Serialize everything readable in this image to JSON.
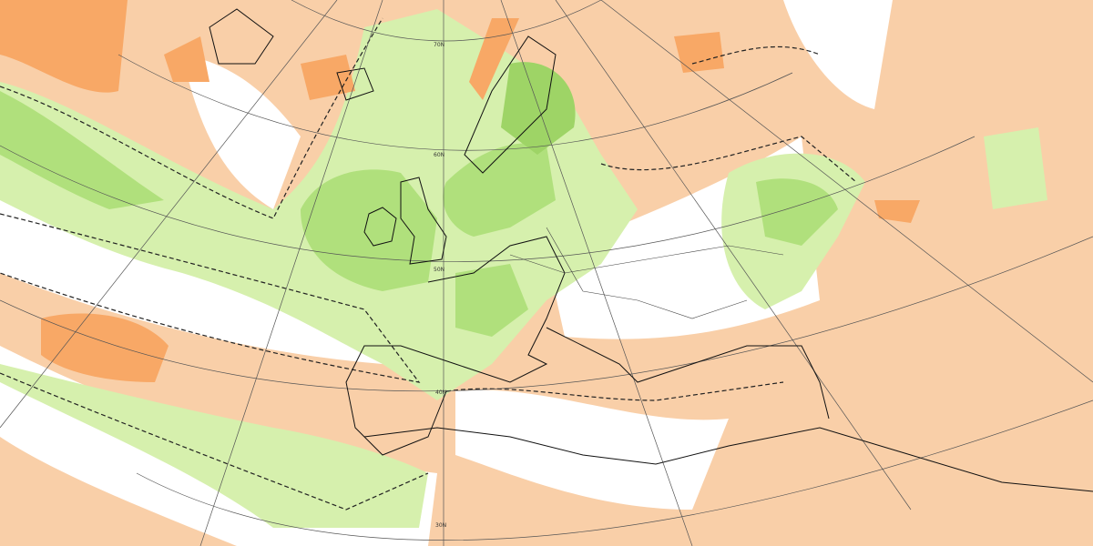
{
  "graticule_labels": [
    "70N",
    "60N",
    "50N",
    "40N",
    "30N"
  ]
}
